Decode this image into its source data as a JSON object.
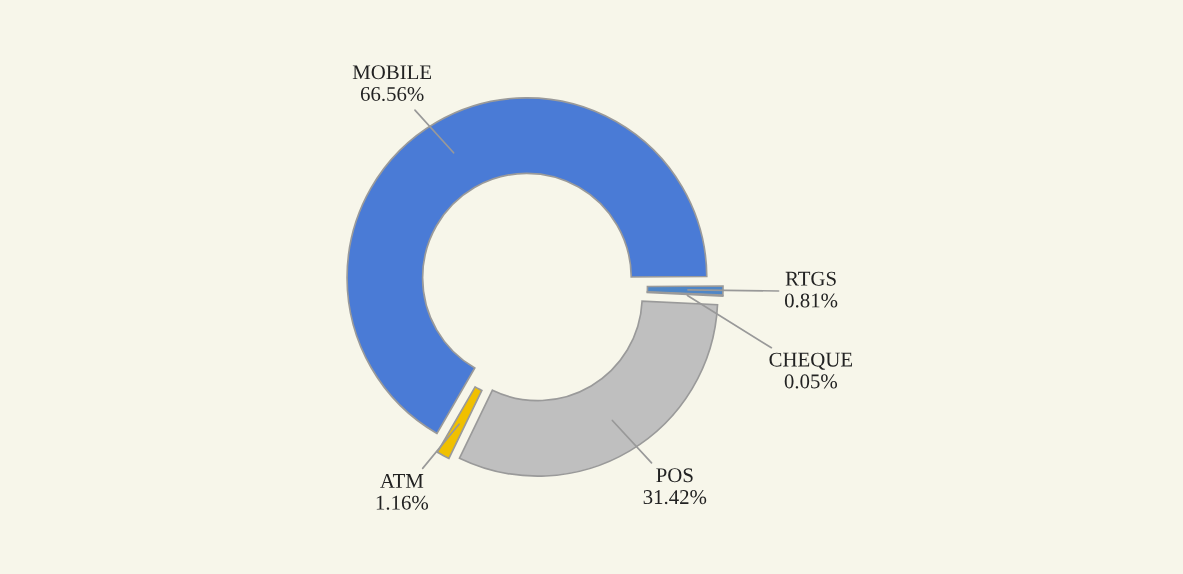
{
  "chart_data": {
    "type": "donut",
    "categories": [
      "MOBILE",
      "RTGS",
      "CHEQUE",
      "POS",
      "ATM"
    ],
    "values": [
      66.56,
      0.81,
      0.05,
      31.42,
      1.16
    ],
    "colors": [
      "#4a7bd6",
      "#4f86c6",
      "#5b8fd0",
      "#bfbfbf",
      "#f0c000"
    ],
    "value_labels": [
      "66.56%",
      "0.81%",
      "0.05%",
      "31.42%",
      "1.16%"
    ]
  }
}
